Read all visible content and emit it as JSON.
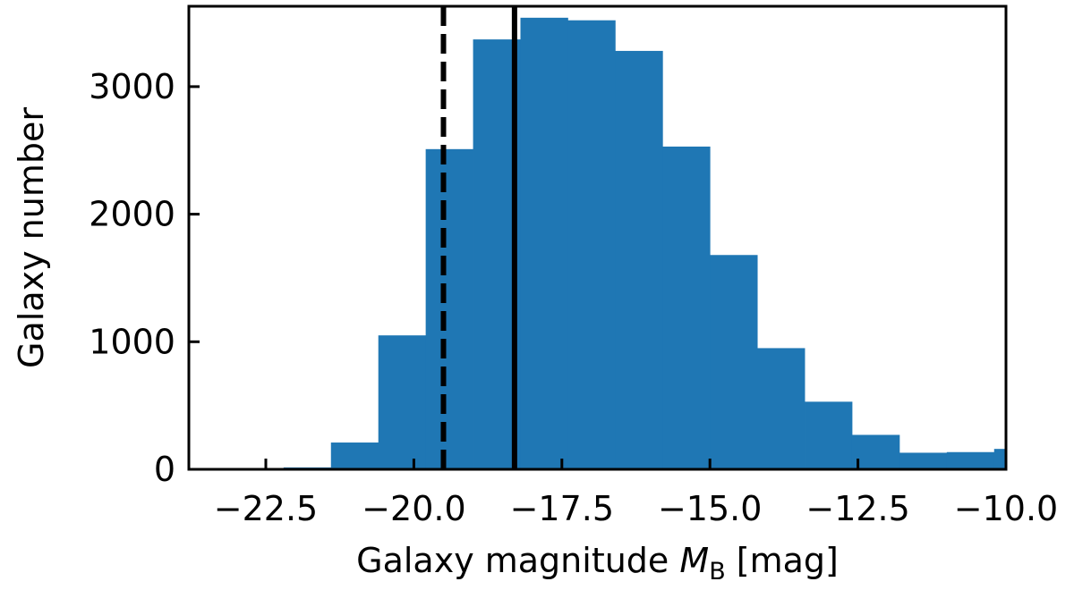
{
  "chart_data": {
    "type": "histogram",
    "title": "",
    "xlabel": "Galaxy magnitude ",
    "xlabel_math_symbol": "M",
    "xlabel_math_subscript": "B",
    "xlabel_unit": " [mag]",
    "ylabel": "Galaxy number",
    "xlim": [
      -23.8,
      -10.0
    ],
    "ylim": [
      0,
      3630
    ],
    "xticks": [
      -22.5,
      -20.0,
      -17.5,
      -15.0,
      -12.5,
      -10.0
    ],
    "xtick_labels": [
      "−22.5",
      "−20.0",
      "−17.5",
      "−15.0",
      "−12.5",
      "−10.0"
    ],
    "yticks": [
      0,
      1000,
      2000,
      3000
    ],
    "ytick_labels": [
      "0",
      "1000",
      "2000",
      "3000"
    ],
    "bar_color": "#1f77b4",
    "bins": [
      {
        "x0": -23.8,
        "x1": -23.0,
        "count": 3
      },
      {
        "x0": -23.0,
        "x1": -22.2,
        "count": 5
      },
      {
        "x0": -22.2,
        "x1": -21.4,
        "count": 15
      },
      {
        "x0": -21.4,
        "x1": -20.6,
        "count": 210
      },
      {
        "x0": -20.6,
        "x1": -19.8,
        "count": 1050
      },
      {
        "x0": -19.8,
        "x1": -19.0,
        "count": 2510
      },
      {
        "x0": -19.0,
        "x1": -18.2,
        "count": 3370
      },
      {
        "x0": -18.2,
        "x1": -17.4,
        "count": 3540
      },
      {
        "x0": -17.4,
        "x1": -16.6,
        "count": 3520
      },
      {
        "x0": -16.6,
        "x1": -15.8,
        "count": 3280
      },
      {
        "x0": -15.8,
        "x1": -15.0,
        "count": 2530
      },
      {
        "x0": -15.0,
        "x1": -14.2,
        "count": 1680
      },
      {
        "x0": -14.2,
        "x1": -13.4,
        "count": 950
      },
      {
        "x0": -13.4,
        "x1": -12.6,
        "count": 530
      },
      {
        "x0": -12.6,
        "x1": -11.8,
        "count": 270
      },
      {
        "x0": -11.8,
        "x1": -11.0,
        "count": 130
      },
      {
        "x0": -11.0,
        "x1": -10.2,
        "count": 135
      },
      {
        "x0": -10.2,
        "x1": -10.0,
        "count": 160
      }
    ],
    "vlines": [
      {
        "x": -19.5,
        "style": "dashed",
        "color": "#000000"
      },
      {
        "x": -18.3,
        "style": "solid",
        "color": "#000000"
      }
    ],
    "grid": false,
    "legend": "none"
  }
}
